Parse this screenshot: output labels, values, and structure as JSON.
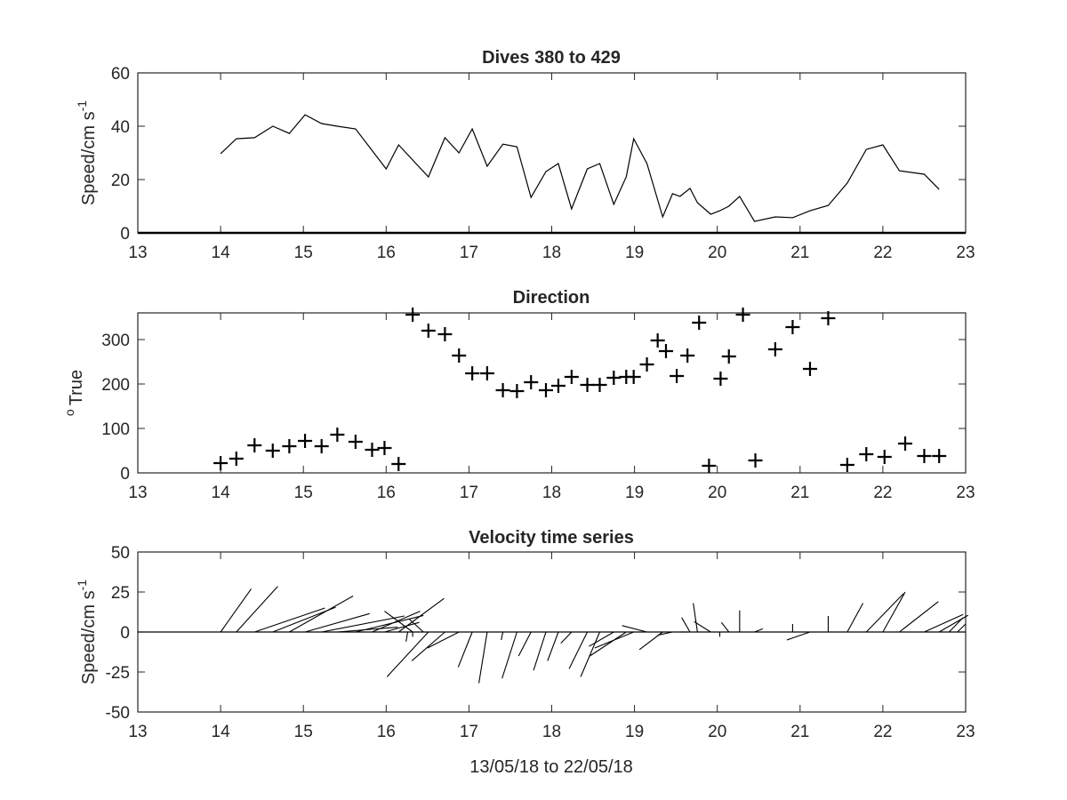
{
  "chart_data": [
    {
      "type": "line",
      "title": "Dives 380 to 429",
      "xlabel": "",
      "ylabel": "Speed/cm s",
      "ylabel_superscript": "-1",
      "xlim": [
        13,
        23
      ],
      "ylim": [
        0,
        60
      ],
      "x_ticks": [
        13,
        14,
        15,
        16,
        17,
        18,
        19,
        20,
        21,
        22,
        23
      ],
      "y_ticks": [
        0,
        20,
        40,
        60
      ],
      "series": [
        {
          "x": [
            14.0,
            14.19,
            14.41,
            14.63,
            14.83,
            15.02,
            15.22,
            15.41,
            15.63,
            16.0,
            16.15,
            16.51,
            16.71,
            16.88,
            17.04,
            17.22,
            17.41,
            17.58,
            17.75,
            17.93,
            18.08,
            18.24,
            18.43,
            18.58,
            18.75,
            18.9,
            18.99,
            19.15,
            19.34,
            19.46,
            19.55,
            19.67,
            19.76,
            19.92,
            20.03,
            20.14,
            20.27,
            20.45,
            20.7,
            20.91,
            21.12,
            21.34,
            21.57,
            21.8,
            22.0,
            22.2,
            22.5,
            22.68
          ],
          "y": [
            29.7,
            35.3,
            35.7,
            40.0,
            37.3,
            44.3,
            41.0,
            40.0,
            39.0,
            24.0,
            33.0,
            21.0,
            35.7,
            30.0,
            39.0,
            25.0,
            33.3,
            32.3,
            13.3,
            23.0,
            26.0,
            9.0,
            24.0,
            26.0,
            10.7,
            21.0,
            35.3,
            26.0,
            6.0,
            14.7,
            13.7,
            16.7,
            11.3,
            7.0,
            8.3,
            10.0,
            13.7,
            4.3,
            6.0,
            5.7,
            8.3,
            10.3,
            18.7,
            31.3,
            33.0,
            23.3,
            22.0,
            16.3
          ]
        }
      ]
    },
    {
      "type": "scatter",
      "title": "Direction",
      "xlabel": "",
      "ylabel": "True",
      "ylabel_superscript": "o",
      "xlim": [
        13,
        23
      ],
      "ylim": [
        0,
        360
      ],
      "x_ticks": [
        13,
        14,
        15,
        16,
        17,
        18,
        19,
        20,
        21,
        22,
        23
      ],
      "y_ticks": [
        0,
        100,
        200,
        300
      ],
      "marker": "+",
      "series": [
        {
          "x": [
            14.0,
            14.19,
            14.41,
            14.63,
            14.83,
            15.02,
            15.22,
            15.41,
            15.63,
            15.83,
            15.98,
            16.15,
            16.32,
            16.51,
            16.71,
            16.88,
            17.04,
            17.22,
            17.41,
            17.58,
            17.75,
            17.93,
            18.08,
            18.24,
            18.43,
            18.58,
            18.75,
            18.9,
            18.99,
            19.15,
            19.28,
            19.38,
            19.51,
            19.64,
            19.78,
            19.9,
            20.04,
            20.14,
            20.31,
            20.46,
            20.7,
            20.91,
            21.12,
            21.34,
            21.57,
            21.8,
            22.02,
            22.27,
            22.5,
            22.68
          ],
          "y": [
            22,
            32,
            62,
            50,
            60,
            72,
            60,
            86,
            70,
            52,
            56,
            20,
            356,
            320,
            312,
            264,
            224,
            224,
            186,
            184,
            204,
            186,
            196,
            216,
            198,
            198,
            214,
            216,
            216,
            244,
            298,
            274,
            218,
            264,
            338,
            16,
            212,
            262,
            356,
            28,
            278,
            328,
            234,
            348,
            18,
            42,
            36,
            66,
            38,
            38
          ]
        }
      ]
    },
    {
      "type": "line",
      "title": "Velocity time series",
      "xlabel": "13/05/18 to 22/05/18",
      "ylabel": "Speed/cm s",
      "ylabel_superscript": "-1",
      "xlim": [
        13,
        23
      ],
      "ylim": [
        -50,
        50
      ],
      "x_ticks": [
        13,
        14,
        15,
        16,
        17,
        18,
        19,
        20,
        21,
        22,
        23
      ],
      "y_ticks": [
        -50,
        -25,
        0,
        25,
        50
      ],
      "y_tick_labels": [
        "-50",
        "-25",
        "0",
        "25",
        "50"
      ],
      "stick_plot": {
        "description": "one stick per dive from (t, 0) to (t + dx, dy)",
        "sticks": [
          {
            "t": 14.0,
            "dx": 0.37,
            "dy": 27.0
          },
          {
            "t": 14.19,
            "dx": 0.5,
            "dy": 28.5
          },
          {
            "t": 14.41,
            "dx": 0.85,
            "dy": 15.0
          },
          {
            "t": 14.63,
            "dx": 0.76,
            "dy": 15.5
          },
          {
            "t": 14.83,
            "dx": 0.77,
            "dy": 22.5
          },
          {
            "t": 15.02,
            "dx": 0.78,
            "dy": 11.5
          },
          {
            "t": 15.22,
            "dx": 1.0,
            "dy": 10.0
          },
          {
            "t": 15.41,
            "dx": 0.73,
            "dy": 3.0
          },
          {
            "t": 15.63,
            "dx": 0.82,
            "dy": 10.3
          },
          {
            "t": 15.83,
            "dx": 0.58,
            "dy": 13.0
          },
          {
            "t": 15.98,
            "dx": 0.42,
            "dy": 6.0
          },
          {
            "t": 16.15,
            "dx": 0.55,
            "dy": 21.0
          },
          {
            "t": 16.26,
            "dx": -0.02,
            "dy": -6.0
          },
          {
            "t": 16.32,
            "dx": 0.0,
            "dy": -3.0
          },
          {
            "t": 16.32,
            "dx": -0.34,
            "dy": 13.0
          },
          {
            "t": 16.45,
            "dx": -0.17,
            "dy": 8.0
          },
          {
            "t": 16.51,
            "dx": -0.5,
            "dy": -28.0
          },
          {
            "t": 16.71,
            "dx": -0.4,
            "dy": -18.0
          },
          {
            "t": 16.88,
            "dx": -0.38,
            "dy": -10.0
          },
          {
            "t": 17.04,
            "dx": -0.17,
            "dy": -22.0
          },
          {
            "t": 17.22,
            "dx": -0.1,
            "dy": -32.0
          },
          {
            "t": 17.41,
            "dx": -0.02,
            "dy": -5.0
          },
          {
            "t": 17.58,
            "dx": -0.18,
            "dy": -29.0
          },
          {
            "t": 17.75,
            "dx": -0.15,
            "dy": -15.0
          },
          {
            "t": 17.93,
            "dx": -0.15,
            "dy": -24.0
          },
          {
            "t": 18.08,
            "dx": -0.13,
            "dy": -18.0
          },
          {
            "t": 18.24,
            "dx": -0.13,
            "dy": -7.0
          },
          {
            "t": 18.43,
            "dx": -0.22,
            "dy": -23.0
          },
          {
            "t": 18.58,
            "dx": -0.23,
            "dy": -28.0
          },
          {
            "t": 18.75,
            "dx": -0.3,
            "dy": -9.0
          },
          {
            "t": 18.9,
            "dx": -0.44,
            "dy": -15.0
          },
          {
            "t": 18.99,
            "dx": -0.47,
            "dy": -10.0
          },
          {
            "t": 19.15,
            "dx": -0.3,
            "dy": 4.0
          },
          {
            "t": 19.34,
            "dx": -0.28,
            "dy": -11.0
          },
          {
            "t": 19.46,
            "dx": -0.18,
            "dy": -2.0
          },
          {
            "t": 19.55,
            "dx": 0.1,
            "dy": 0.0
          },
          {
            "t": 19.67,
            "dx": -0.1,
            "dy": 9.0
          },
          {
            "t": 19.76,
            "dx": -0.05,
            "dy": 18.0
          },
          {
            "t": 19.92,
            "dx": -0.2,
            "dy": 6.5
          },
          {
            "t": 20.03,
            "dx": 0.0,
            "dy": -3.0
          },
          {
            "t": 20.14,
            "dx": -0.09,
            "dy": 6.0
          },
          {
            "t": 20.27,
            "dx": 0.0,
            "dy": 13.5
          },
          {
            "t": 20.45,
            "dx": 0.1,
            "dy": 2.0
          },
          {
            "t": 20.7,
            "dx": 0.0,
            "dy": 0.0
          },
          {
            "t": 20.91,
            "dx": 0.0,
            "dy": 5.0
          },
          {
            "t": 21.12,
            "dx": -0.28,
            "dy": -5.0
          },
          {
            "t": 21.34,
            "dx": 0.0,
            "dy": 10.0
          },
          {
            "t": 21.57,
            "dx": 0.19,
            "dy": 18.0
          },
          {
            "t": 21.8,
            "dx": 0.45,
            "dy": 24.0
          },
          {
            "t": 22.0,
            "dx": 0.27,
            "dy": 25.0
          },
          {
            "t": 22.2,
            "dx": 0.47,
            "dy": 19.0
          },
          {
            "t": 22.5,
            "dx": 0.47,
            "dy": 11.0
          },
          {
            "t": 22.68,
            "dx": 0.35,
            "dy": 10.5
          },
          {
            "t": 22.8,
            "dx": 0.17,
            "dy": 9.0
          },
          {
            "t": 22.9,
            "dx": 0.1,
            "dy": 5.0
          }
        ]
      }
    }
  ]
}
